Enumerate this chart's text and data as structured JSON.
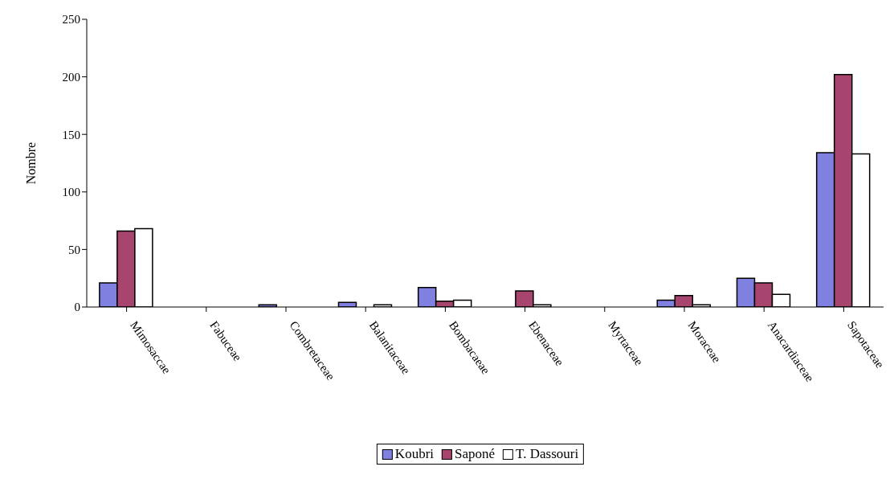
{
  "chart_data": {
    "type": "bar",
    "ylabel": "Nombre",
    "categories": [
      "Mimosaccae",
      "Fabuceae",
      "Combretaceae",
      "Balanitaceae",
      "Bombacaeae",
      "Ebenaceae",
      "Myrtaceae",
      "Moraceae",
      "Anacardiaceae",
      "Sapotaceae"
    ],
    "series": [
      {
        "name": "Koubri",
        "color": "#7f80e0",
        "values": [
          21,
          0,
          2,
          4,
          17,
          null,
          null,
          6,
          25,
          134
        ]
      },
      {
        "name": "Saponé",
        "color": "#a8456e",
        "values": [
          66,
          0,
          null,
          null,
          5,
          14,
          null,
          10,
          21,
          202
        ]
      },
      {
        "name": "T. Dassouri",
        "color": "#ffffff",
        "values": [
          68,
          0,
          0,
          2,
          6,
          2,
          0,
          2,
          11,
          133
        ]
      }
    ],
    "ylim": [
      0,
      250
    ],
    "yticks": [
      0,
      50,
      100,
      150,
      200,
      250
    ],
    "grid": false,
    "legend": "bottom"
  }
}
